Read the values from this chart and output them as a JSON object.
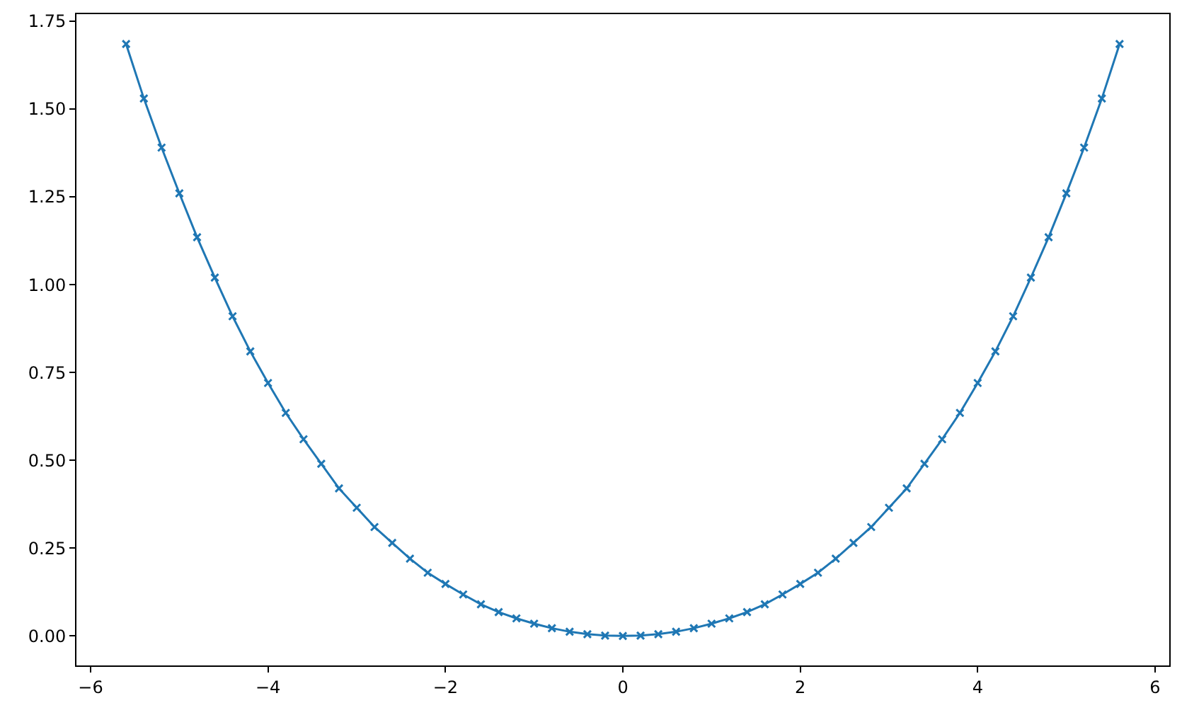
{
  "chart_data": {
    "type": "line",
    "x": [
      -5.6,
      -5.4,
      -5.2,
      -5.0,
      -4.8,
      -4.6,
      -4.4,
      -4.2,
      -4.0,
      -3.8,
      -3.6,
      -3.4,
      -3.2,
      -3.0,
      -2.8,
      -2.6,
      -2.4,
      -2.2,
      -2.0,
      -1.8,
      -1.6,
      -1.4,
      -1.2,
      -1.0,
      -0.8,
      -0.6,
      -0.4,
      -0.2,
      0.0,
      0.2,
      0.4,
      0.6,
      0.8,
      1.0,
      1.2,
      1.4,
      1.6,
      1.8,
      2.0,
      2.2,
      2.4,
      2.6,
      2.8,
      3.0,
      3.2,
      3.4,
      3.6,
      3.8,
      4.0,
      4.2,
      4.4,
      4.6,
      4.8,
      5.0,
      5.2,
      5.4,
      5.6
    ],
    "series": [
      {
        "color": "#1f77b4",
        "values": [
          1.685,
          1.53,
          1.39,
          1.26,
          1.135,
          1.02,
          0.91,
          0.81,
          0.72,
          0.635,
          0.56,
          0.49,
          0.42,
          0.365,
          0.31,
          0.265,
          0.22,
          0.18,
          0.148,
          0.118,
          0.09,
          0.068,
          0.05,
          0.035,
          0.022,
          0.012,
          0.005,
          0.001,
          0.0,
          0.001,
          0.005,
          0.012,
          0.022,
          0.035,
          0.05,
          0.068,
          0.09,
          0.118,
          0.148,
          0.18,
          0.22,
          0.265,
          0.31,
          0.365,
          0.42,
          0.49,
          0.56,
          0.635,
          0.72,
          0.81,
          0.91,
          1.02,
          1.135,
          1.26,
          1.39,
          1.53,
          1.685
        ]
      }
    ],
    "xlim": [
      -6.16,
      6.16
    ],
    "ylim": [
      -0.084,
      1.77
    ],
    "xticks": [
      {
        "value": -6,
        "label": "−6"
      },
      {
        "value": -4,
        "label": "−4"
      },
      {
        "value": -2,
        "label": "−2"
      },
      0,
      2,
      4,
      6
    ],
    "yticks": [
      {
        "value": 0,
        "label": "0.00"
      },
      {
        "value": 0.25,
        "label": "0.25"
      },
      {
        "value": 0.5,
        "label": "0.50"
      },
      {
        "value": 0.75,
        "label": "0.75"
      },
      {
        "value": 1,
        "label": "1.00"
      },
      {
        "value": 1.25,
        "label": "1.25"
      },
      {
        "value": 1.5,
        "label": "1.50"
      },
      {
        "value": 1.75,
        "label": "1.75"
      }
    ],
    "marker": "cross",
    "line_style": "solid"
  }
}
